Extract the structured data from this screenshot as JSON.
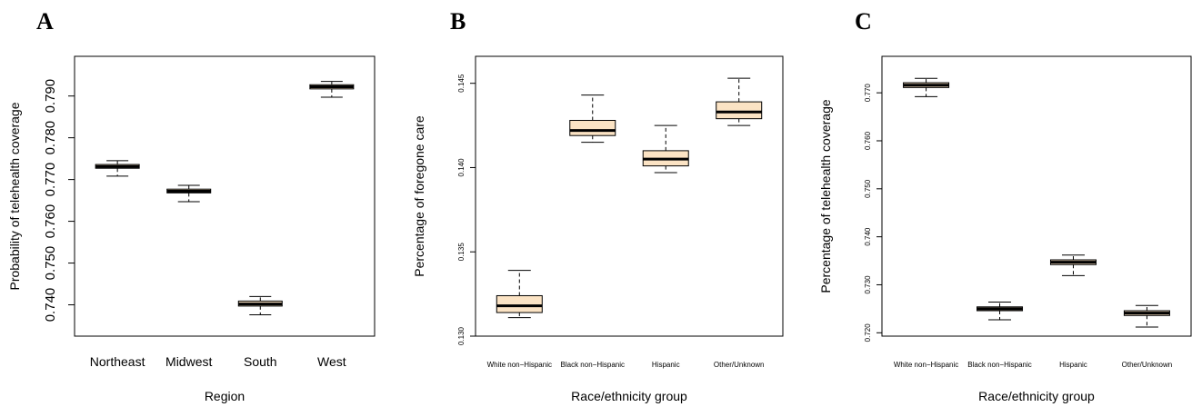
{
  "chart_data": [
    {
      "panel": "A",
      "type": "boxplot",
      "xlabel": "Region",
      "ylabel": "Probability of telehealth coverage",
      "categories": [
        "Northeast",
        "Midwest",
        "South",
        "West"
      ],
      "ylim": [
        0.7325,
        0.7995
      ],
      "yticks": [
        0.74,
        0.75,
        0.76,
        0.77,
        0.78,
        0.79
      ],
      "ytick_labels": [
        "0.740",
        "0.750",
        "0.760",
        "0.770",
        "0.780",
        "0.790"
      ],
      "boxes": [
        {
          "min": 0.7708,
          "q1": 0.7727,
          "median": 0.7731,
          "q3": 0.7736,
          "max": 0.7745
        },
        {
          "min": 0.7647,
          "q1": 0.7668,
          "median": 0.7672,
          "q3": 0.7677,
          "max": 0.7686
        },
        {
          "min": 0.7376,
          "q1": 0.7397,
          "median": 0.7402,
          "q3": 0.7409,
          "max": 0.742
        },
        {
          "min": 0.7897,
          "q1": 0.7917,
          "median": 0.7922,
          "q3": 0.7927,
          "max": 0.7935
        }
      ]
    },
    {
      "panel": "B",
      "type": "boxplot",
      "xlabel": "Race/ethnicity group",
      "ylabel": "Percentage of foregone care",
      "categories": [
        "White non−Hispanic",
        "Black non−Hispanic",
        "Hispanic",
        "Other/Unknown"
      ],
      "ylim": [
        0.13,
        0.1466
      ],
      "yticks": [
        0.13,
        0.135,
        0.14,
        0.145
      ],
      "ytick_labels": [
        "0.130",
        "0.135",
        "0.140",
        "0.145"
      ],
      "boxes": [
        {
          "min": 0.1311,
          "q1": 0.1314,
          "median": 0.1318,
          "q3": 0.1324,
          "max": 0.1339
        },
        {
          "min": 0.1415,
          "q1": 0.1419,
          "median": 0.1422,
          "q3": 0.1428,
          "max": 0.1443
        },
        {
          "min": 0.1397,
          "q1": 0.1401,
          "median": 0.1405,
          "q3": 0.141,
          "max": 0.1425
        },
        {
          "min": 0.1425,
          "q1": 0.1429,
          "median": 0.1433,
          "q3": 0.1439,
          "max": 0.1453
        }
      ]
    },
    {
      "panel": "C",
      "type": "boxplot",
      "xlabel": "Race/ethnicity group",
      "ylabel": "Percentage of telehealth coverage",
      "categories": [
        "White non−Hispanic",
        "Black non−Hispanic",
        "Hispanic",
        "Other/Unknown"
      ],
      "ylim": [
        0.7193,
        0.7776
      ],
      "yticks": [
        0.72,
        0.73,
        0.74,
        0.75,
        0.76,
        0.77
      ],
      "ytick_labels": [
        "0.720",
        "0.730",
        "0.740",
        "0.750",
        "0.760",
        "0.770"
      ],
      "boxes": [
        {
          "min": 0.7692,
          "q1": 0.7711,
          "median": 0.7716,
          "q3": 0.7721,
          "max": 0.773
        },
        {
          "min": 0.7227,
          "q1": 0.7246,
          "median": 0.725,
          "q3": 0.7254,
          "max": 0.7264
        },
        {
          "min": 0.7319,
          "q1": 0.7342,
          "median": 0.7347,
          "q3": 0.7352,
          "max": 0.7362
        },
        {
          "min": 0.7212,
          "q1": 0.7236,
          "median": 0.7241,
          "q3": 0.7246,
          "max": 0.7257
        }
      ]
    }
  ]
}
